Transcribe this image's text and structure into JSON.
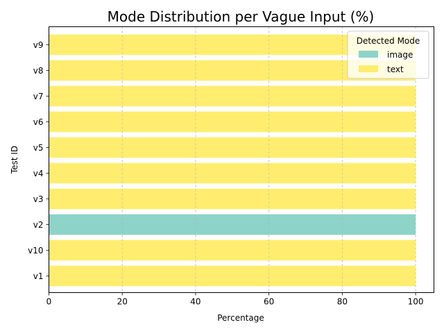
{
  "chart_data": {
    "type": "bar",
    "orientation": "horizontal",
    "stacked": true,
    "title": "Mode Distribution per Vague Input (%)",
    "xlabel": "Percentage",
    "ylabel": "Test ID",
    "xlim": [
      0,
      105
    ],
    "xticks": [
      0,
      20,
      40,
      60,
      80,
      100
    ],
    "grid": "x-dashed",
    "categories": [
      "v1",
      "v10",
      "v2",
      "v3",
      "v4",
      "v5",
      "v6",
      "v7",
      "v8",
      "v9"
    ],
    "series": [
      {
        "name": "image",
        "color": "#8dd3c7",
        "values": [
          0,
          0,
          100,
          0,
          0,
          0,
          0,
          0,
          0,
          0
        ]
      },
      {
        "name": "text",
        "color": "#ffed6f",
        "values": [
          100,
          100,
          0,
          100,
          100,
          100,
          100,
          100,
          100,
          100
        ]
      }
    ],
    "legend": {
      "title": "Detected Mode",
      "placement": "top-right"
    }
  }
}
